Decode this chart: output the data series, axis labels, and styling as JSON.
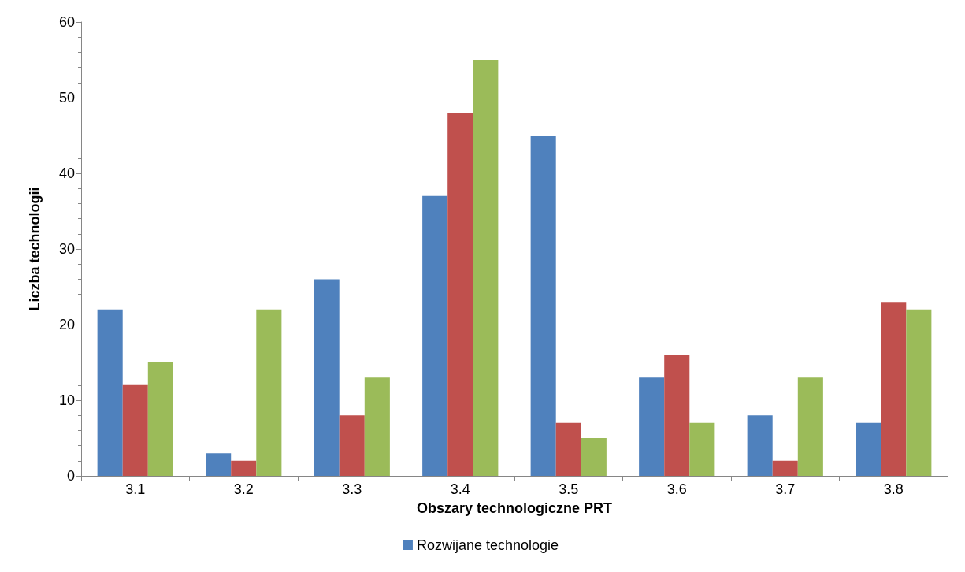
{
  "chart_data": {
    "type": "bar",
    "xlabel": "Obszary technologiczne PRT",
    "ylabel": "Liczba technologii",
    "categories": [
      "3.1",
      "3.2",
      "3.3",
      "3.4",
      "3.5",
      "3.6",
      "3.7",
      "3.8"
    ],
    "series": [
      {
        "name": "Rozwijane technologie",
        "color": "#4f81bd",
        "values": [
          22,
          3,
          26,
          37,
          45,
          13,
          8,
          7
        ]
      },
      {
        "color": "#c0504d",
        "values": [
          12,
          2,
          8,
          48,
          7,
          16,
          2,
          23
        ]
      },
      {
        "color": "#9bbb59",
        "values": [
          15,
          22,
          13,
          55,
          5,
          7,
          13,
          22
        ]
      }
    ],
    "ylim": [
      0,
      60
    ],
    "yticks": [
      0,
      10,
      20,
      30,
      40,
      50,
      60
    ],
    "grid": false,
    "legend": "bottom"
  }
}
